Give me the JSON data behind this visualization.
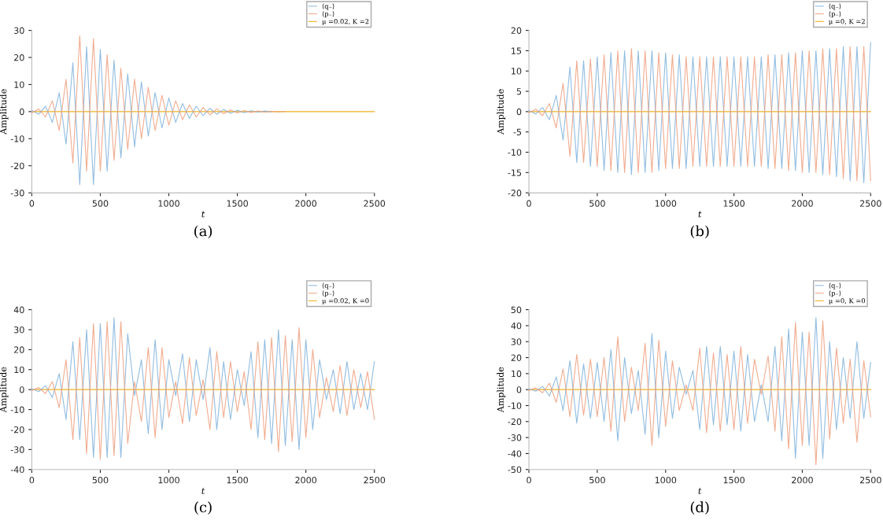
{
  "chart_data": [
    {
      "type": "line",
      "xlabel": "t",
      "ylabel": "Amplitude",
      "annotations": [
        "(a)"
      ],
      "legend": "top right",
      "grid": false,
      "marker": "none",
      "line_style": "solid",
      "xlim": [
        0,
        2500
      ],
      "xticks": [
        0,
        500,
        1000,
        1500,
        2000,
        2500
      ],
      "ylim": [
        -30,
        30
      ],
      "yticks": [
        -30,
        -20,
        -10,
        0,
        10,
        20,
        30
      ],
      "series": [
        {
          "name": "⟨q₋⟩",
          "color": "#7fb2dc",
          "x": [
            0,
            50,
            100,
            150,
            200,
            250,
            300,
            350,
            400,
            450,
            500,
            550,
            600,
            650,
            700,
            750,
            800,
            850,
            900,
            950,
            1000,
            1050,
            1100,
            1150,
            1200,
            1250,
            1300,
            1350,
            1400,
            1450,
            1500,
            1550,
            1600,
            1650,
            1700,
            1750
          ],
          "values": [
            0.5,
            -1,
            2,
            -4,
            7,
            -12,
            18,
            -27,
            24,
            -27,
            23,
            -22,
            19,
            -17,
            14,
            -13,
            11,
            -9,
            7,
            -6,
            5,
            -4,
            3,
            -2.5,
            2,
            -1.5,
            1.2,
            -1,
            0.8,
            -0.6,
            0.5,
            -0.4,
            0.3,
            -0.2,
            0.2,
            -0.1
          ]
        },
        {
          "name": "⟨p₋⟩",
          "color": "#ee9e7c",
          "x": [
            0,
            50,
            100,
            150,
            200,
            250,
            300,
            350,
            400,
            450,
            500,
            550,
            600,
            650,
            700,
            750,
            800,
            850,
            900,
            950,
            1000,
            1050,
            1100,
            1150,
            1200,
            1250,
            1300,
            1350,
            1400,
            1450,
            1500,
            1550,
            1600,
            1650,
            1700,
            1750,
            1800,
            1850
          ],
          "values": [
            -0.5,
            1,
            -2,
            4,
            -7,
            12,
            -19,
            28,
            -22,
            27,
            -22,
            21,
            -18,
            16,
            -14,
            12,
            -10,
            9,
            -7,
            6,
            -5,
            4,
            -3,
            2.5,
            -2,
            1.5,
            -1.2,
            1,
            -0.8,
            0.6,
            -0.5,
            0.4,
            -0.3,
            0.2,
            -0.2,
            0.1,
            -0.1,
            0.1
          ]
        },
        {
          "name": "μ =0.02, K =2",
          "color": "#edb120",
          "x": [
            0,
            2500
          ],
          "values": [
            0,
            0
          ]
        }
      ]
    },
    {
      "type": "line",
      "xlabel": "t",
      "ylabel": "Amplitude",
      "annotations": [
        "(b)"
      ],
      "legend": "top right",
      "grid": false,
      "marker": "none",
      "line_style": "solid",
      "xlim": [
        0,
        2500
      ],
      "xticks": [
        0,
        500,
        1000,
        1500,
        2000,
        2500
      ],
      "ylim": [
        -20,
        20
      ],
      "yticks": [
        -20,
        -15,
        -10,
        -5,
        0,
        5,
        10,
        15,
        20
      ],
      "series": [
        {
          "name": "⟨q₋⟩",
          "color": "#7fb2dc",
          "x": [
            0,
            50,
            100,
            150,
            200,
            250,
            300,
            350,
            400,
            450,
            500,
            550,
            600,
            650,
            700,
            750,
            800,
            850,
            900,
            950,
            1000,
            1050,
            1100,
            1150,
            1200,
            1250,
            1300,
            1350,
            1400,
            1450,
            1500,
            1550,
            1600,
            1650,
            1700,
            1750,
            1800,
            1850,
            1900,
            1950,
            2000,
            2050,
            2100,
            2150,
            2200,
            2250,
            2300,
            2350,
            2400,
            2450,
            2500
          ],
          "values": [
            0.3,
            -0.6,
            1,
            -2,
            4,
            -7,
            11,
            -12.5,
            12.5,
            -13.5,
            13.5,
            -14.5,
            14.5,
            -15,
            15,
            -15.5,
            15,
            -15,
            15,
            -14.5,
            14.5,
            -14,
            14,
            -14,
            13.5,
            -13.5,
            13.5,
            -13.5,
            13.5,
            -13.5,
            13.5,
            -13.5,
            13.5,
            -13.5,
            13.5,
            -14,
            14,
            -14,
            14.5,
            -14.5,
            15,
            -15,
            15,
            -15.5,
            15.5,
            -16,
            16,
            -17,
            16,
            -17.5,
            17
          ]
        },
        {
          "name": "⟨p₋⟩",
          "color": "#ee9e7c",
          "x": [
            0,
            50,
            100,
            150,
            200,
            250,
            300,
            350,
            400,
            450,
            500,
            550,
            600,
            650,
            700,
            750,
            800,
            850,
            900,
            950,
            1000,
            1050,
            1100,
            1150,
            1200,
            1250,
            1300,
            1350,
            1400,
            1450,
            1500,
            1550,
            1600,
            1650,
            1700,
            1750,
            1800,
            1850,
            1900,
            1950,
            2000,
            2050,
            2100,
            2150,
            2200,
            2250,
            2300,
            2350,
            2400,
            2450,
            2500
          ],
          "values": [
            -0.3,
            0.6,
            -1,
            2,
            -4,
            7,
            -11,
            12.5,
            -12.5,
            13,
            -13.5,
            14,
            -14.5,
            15,
            -15,
            15.5,
            -15,
            15,
            -15,
            14.5,
            -14,
            14,
            -14,
            13.5,
            -13.5,
            13.5,
            -13.5,
            13.5,
            -13.5,
            13.5,
            -13.5,
            13.5,
            -13.5,
            13.5,
            -13.5,
            14,
            -14,
            14,
            -14.5,
            14.5,
            -15,
            15,
            -15,
            15.5,
            -15.5,
            15.5,
            -16.5,
            16,
            -17,
            16,
            -17
          ]
        },
        {
          "name": "μ =0, K =2",
          "color": "#edb120",
          "x": [
            0,
            2500
          ],
          "values": [
            0,
            0
          ]
        }
      ]
    },
    {
      "type": "line",
      "xlabel": "t",
      "ylabel": "Amplitude",
      "annotations": [
        "(c)"
      ],
      "legend": "top right",
      "grid": false,
      "marker": "none",
      "line_style": "solid",
      "xlim": [
        0,
        2500
      ],
      "xticks": [
        0,
        500,
        1000,
        1500,
        2000,
        2500
      ],
      "ylim": [
        -40,
        40
      ],
      "yticks": [
        -40,
        -30,
        -20,
        -10,
        0,
        10,
        20,
        30,
        40
      ],
      "series": [
        {
          "name": "⟨q₋⟩",
          "color": "#7fb2dc",
          "x": [
            0,
            50,
            100,
            150,
            200,
            250,
            300,
            350,
            400,
            450,
            500,
            550,
            600,
            650,
            700,
            750,
            800,
            850,
            900,
            950,
            1000,
            1050,
            1100,
            1150,
            1200,
            1250,
            1300,
            1350,
            1400,
            1450,
            1500,
            1550,
            1600,
            1650,
            1700,
            1750,
            1800,
            1850,
            1900,
            1950,
            2000,
            2050,
            2100,
            2150,
            2200,
            2250,
            2300,
            2350,
            2400,
            2450,
            2500
          ],
          "values": [
            0.5,
            -1,
            2,
            -4,
            8,
            -15,
            24,
            -25,
            30,
            -34,
            33,
            -34,
            36,
            -34,
            28,
            -3,
            15,
            -22,
            25,
            -20,
            15,
            -3,
            18,
            -16,
            15,
            -5,
            21,
            -20,
            14,
            -15,
            10,
            -8,
            19,
            -24,
            25,
            -27,
            30,
            -28,
            25,
            -30,
            25,
            -20,
            15,
            -5,
            10,
            -12,
            14,
            -10,
            8,
            -10,
            14
          ]
        },
        {
          "name": "⟨p₋⟩",
          "color": "#ee9e7c",
          "x": [
            0,
            50,
            100,
            150,
            200,
            250,
            300,
            350,
            400,
            450,
            500,
            550,
            600,
            650,
            700,
            750,
            800,
            850,
            900,
            950,
            1000,
            1050,
            1100,
            1150,
            1200,
            1250,
            1300,
            1350,
            1400,
            1450,
            1500,
            1550,
            1600,
            1650,
            1700,
            1750,
            1800,
            1850,
            1900,
            1950,
            2000,
            2050,
            2100,
            2150,
            2200,
            2250,
            2300,
            2350,
            2400,
            2450,
            2500
          ],
          "values": [
            -0.5,
            1,
            -2,
            4,
            -9,
            15,
            -25,
            26,
            -32,
            33,
            -35,
            34,
            -33,
            34,
            -27,
            4,
            -16,
            21,
            -24,
            21,
            -14,
            4,
            -17,
            16,
            -13,
            5,
            -20,
            19,
            -14,
            14,
            -11,
            9,
            -20,
            24,
            -25,
            26,
            -31,
            27,
            -26,
            31,
            -24,
            20,
            -14,
            6,
            -11,
            12,
            -13,
            10,
            -9,
            9,
            -15
          ]
        },
        {
          "name": "μ =0.02, K =0",
          "color": "#edb120",
          "x": [
            0,
            2500
          ],
          "values": [
            0,
            0
          ]
        }
      ]
    },
    {
      "type": "line",
      "xlabel": "t",
      "ylabel": "Amplitude",
      "annotations": [
        "(d)"
      ],
      "legend": "top right",
      "grid": false,
      "marker": "none",
      "line_style": "solid",
      "xlim": [
        0,
        2500
      ],
      "xticks": [
        0,
        500,
        1000,
        1500,
        2000,
        2500
      ],
      "ylim": [
        -50,
        50
      ],
      "yticks": [
        -50,
        -40,
        -30,
        -20,
        -10,
        0,
        10,
        20,
        30,
        40,
        50
      ],
      "series": [
        {
          "name": "⟨q₋⟩",
          "color": "#7fb2dc",
          "x": [
            0,
            50,
            100,
            150,
            200,
            250,
            300,
            350,
            400,
            450,
            500,
            550,
            600,
            650,
            700,
            750,
            800,
            850,
            900,
            950,
            1000,
            1050,
            1100,
            1150,
            1200,
            1250,
            1300,
            1350,
            1400,
            1450,
            1500,
            1550,
            1600,
            1650,
            1700,
            1750,
            1800,
            1850,
            1900,
            1950,
            2000,
            2050,
            2100,
            2150,
            2200,
            2250,
            2300,
            2350,
            2400,
            2450,
            2500
          ],
          "values": [
            0.5,
            -1,
            2,
            -4,
            8,
            -13,
            18,
            -21,
            16,
            -18,
            17,
            -20,
            25,
            -32,
            20,
            -15,
            12,
            -28,
            35,
            -30,
            24,
            -18,
            14,
            -3,
            12,
            -25,
            27,
            -22,
            27,
            -22,
            24,
            -26,
            22,
            -20,
            3,
            -20,
            27,
            -32,
            38,
            -43,
            36,
            -35,
            45,
            -43,
            30,
            -25,
            20,
            -18,
            30,
            -18,
            17
          ]
        },
        {
          "name": "⟨p₋⟩",
          "color": "#ee9e7c",
          "x": [
            0,
            50,
            100,
            150,
            200,
            250,
            300,
            350,
            400,
            450,
            500,
            550,
            600,
            650,
            700,
            750,
            800,
            850,
            900,
            950,
            1000,
            1050,
            1100,
            1150,
            1200,
            1250,
            1300,
            1350,
            1400,
            1450,
            1500,
            1550,
            1600,
            1650,
            1700,
            1750,
            1800,
            1850,
            1900,
            1950,
            2000,
            2050,
            2100,
            2150,
            2200,
            2250,
            2300,
            2350,
            2400,
            2450,
            2500
          ],
          "values": [
            -0.5,
            1,
            -2,
            4,
            -8,
            13,
            -17,
            22,
            -16,
            19,
            -17,
            20,
            -26,
            33,
            -20,
            14,
            -13,
            29,
            -35,
            31,
            -23,
            18,
            -13,
            3,
            -13,
            26,
            -27,
            23,
            -26,
            22,
            -25,
            27,
            -21,
            19,
            -3,
            21,
            -26,
            33,
            -37,
            42,
            -35,
            36,
            -47,
            43,
            -31,
            26,
            -21,
            19,
            -33,
            18,
            -17
          ]
        },
        {
          "name": "μ =0, K =0",
          "color": "#edb120",
          "x": [
            0,
            2500
          ],
          "values": [
            0,
            0
          ]
        }
      ]
    }
  ]
}
